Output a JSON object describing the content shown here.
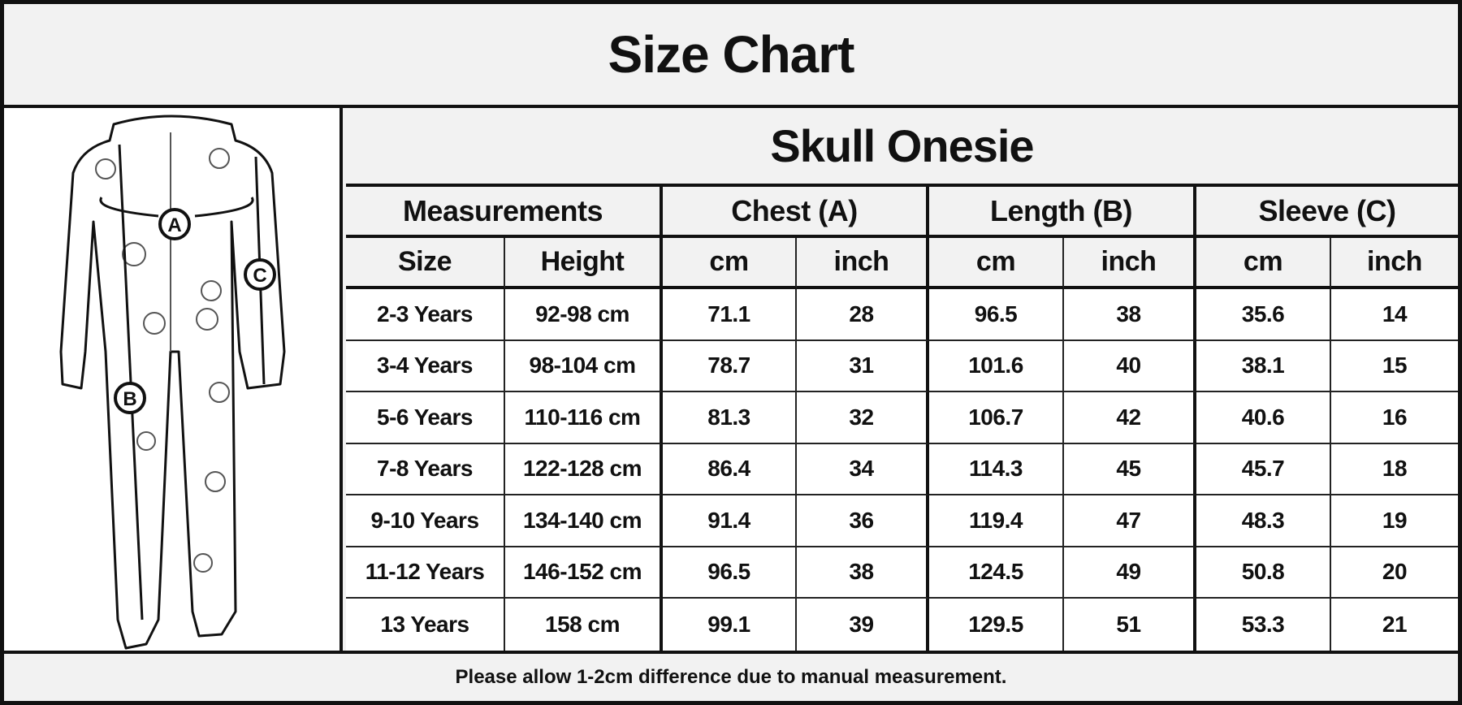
{
  "title": "Size Chart",
  "product": "Skull Onesie",
  "illustration": {
    "labels": [
      "A",
      "B",
      "C"
    ]
  },
  "headers": {
    "groups": [
      "Measurements",
      "Chest (A)",
      "Length (B)",
      "Sleeve (C)"
    ],
    "sub": [
      "Size",
      "Height",
      "cm",
      "inch",
      "cm",
      "inch",
      "cm",
      "inch"
    ]
  },
  "rows": [
    [
      "2-3 Years",
      "92-98 cm",
      "71.1",
      "28",
      "96.5",
      "38",
      "35.6",
      "14"
    ],
    [
      "3-4 Years",
      "98-104 cm",
      "78.7",
      "31",
      "101.6",
      "40",
      "38.1",
      "15"
    ],
    [
      "5-6 Years",
      "110-116 cm",
      "81.3",
      "32",
      "106.7",
      "42",
      "40.6",
      "16"
    ],
    [
      "7-8 Years",
      "122-128 cm",
      "86.4",
      "34",
      "114.3",
      "45",
      "45.7",
      "18"
    ],
    [
      "9-10 Years",
      "134-140 cm",
      "91.4",
      "36",
      "119.4",
      "47",
      "48.3",
      "19"
    ],
    [
      "11-12 Years",
      "146-152 cm",
      "96.5",
      "38",
      "124.5",
      "49",
      "50.8",
      "20"
    ],
    [
      "13 Years",
      "158 cm",
      "99.1",
      "39",
      "129.5",
      "51",
      "53.3",
      "21"
    ]
  ],
  "footer": "Please allow 1-2cm difference due to manual measurement."
}
